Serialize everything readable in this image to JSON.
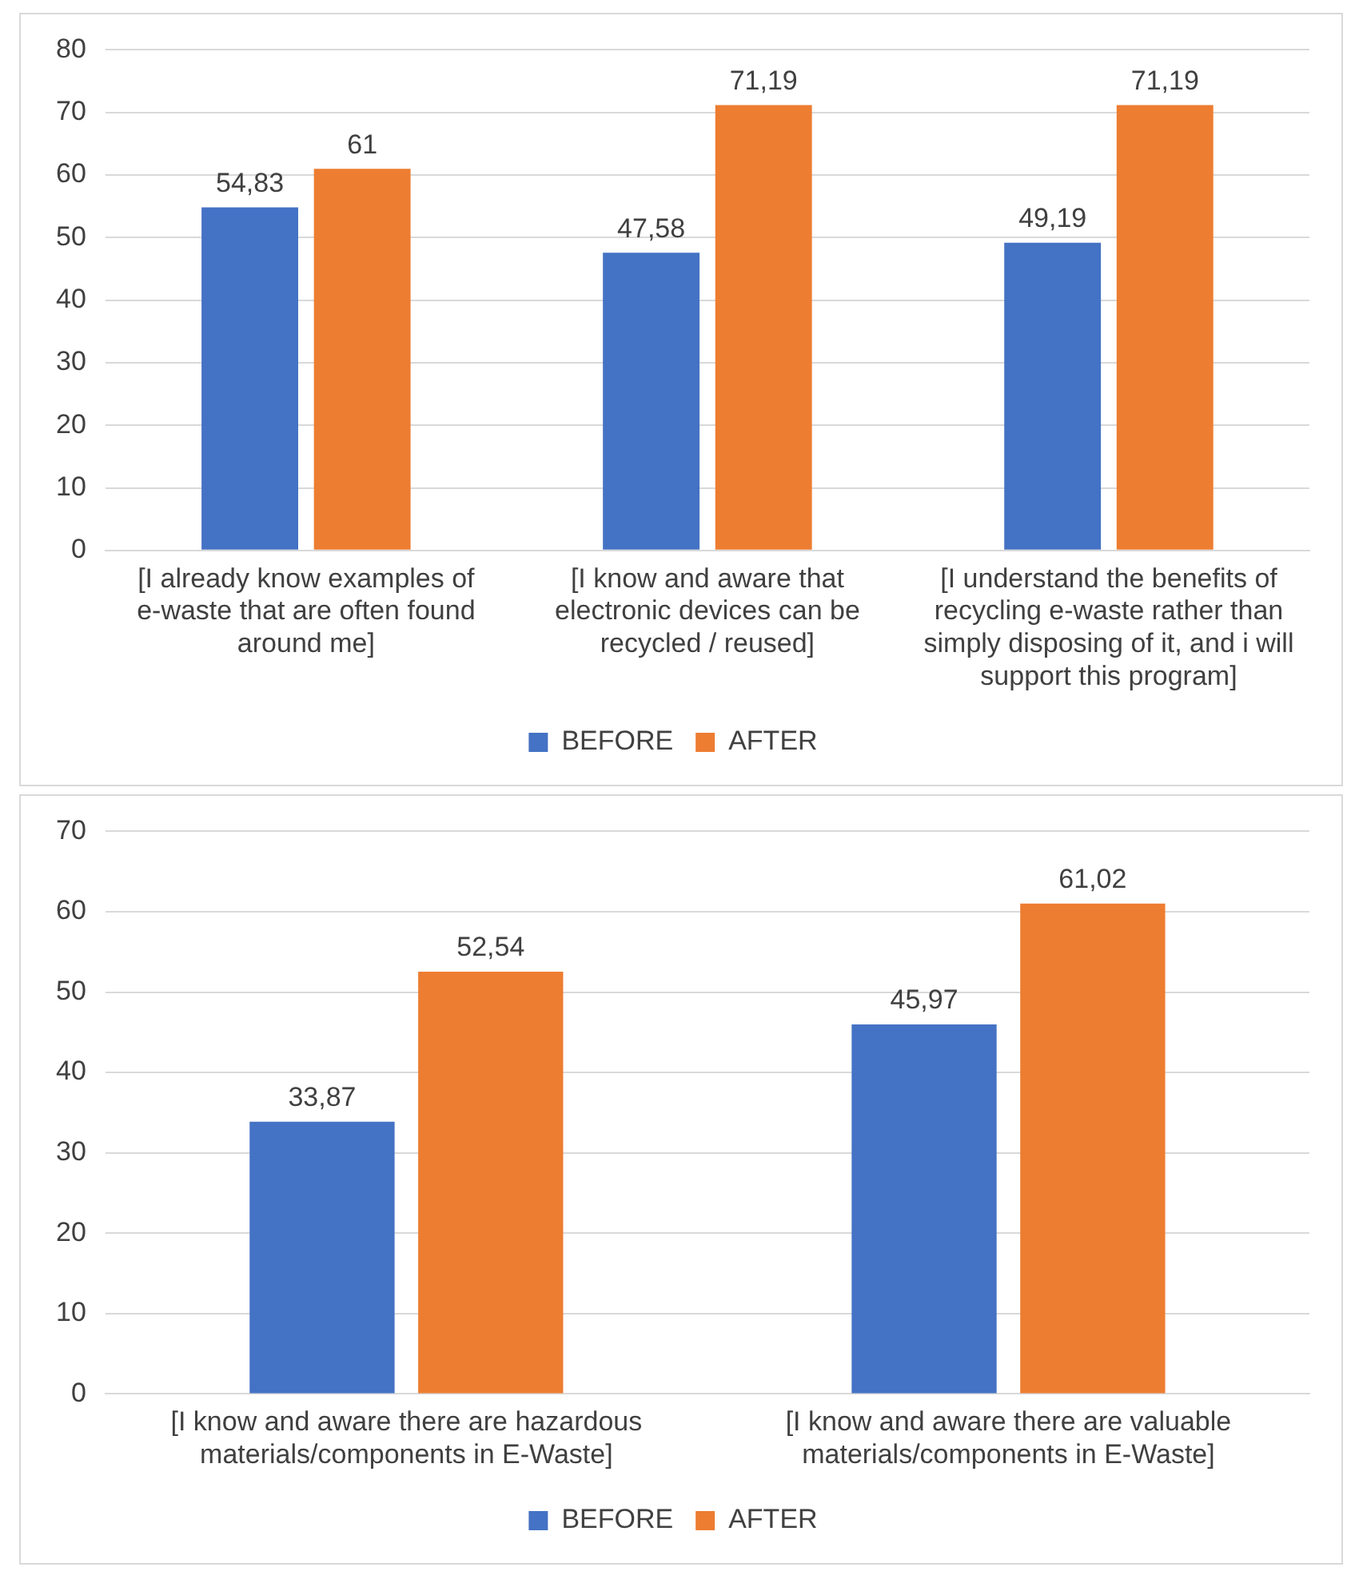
{
  "chart_data": [
    {
      "type": "bar",
      "categories": [
        "[I already know examples of e-waste that are often found around me]",
        "[I know and aware that electronic devices can be recycled / reused]",
        "[I understand the benefits of recycling e-waste rather than simply disposing of it, and i will support this program]"
      ],
      "series": [
        {
          "name": "BEFORE",
          "color": "#4472c4",
          "values": [
            54.83,
            47.58,
            49.19
          ],
          "value_labels": [
            "54,83",
            "47,58",
            "49,19"
          ]
        },
        {
          "name": "AFTER",
          "color": "#ed7d31",
          "values": [
            61,
            71.19,
            71.19
          ],
          "value_labels": [
            "61",
            "71,19",
            "71,19"
          ]
        }
      ],
      "ylim": [
        0,
        80
      ],
      "yticks": [
        0,
        10,
        20,
        30,
        40,
        50,
        60,
        70,
        80
      ],
      "grid": "y",
      "legend": "bottom"
    },
    {
      "type": "bar",
      "categories": [
        "[I know and aware there are hazardous materials/components in E-Waste]",
        "[I know and aware there are valuable materials/components in E-Waste]"
      ],
      "series": [
        {
          "name": "BEFORE",
          "color": "#4472c4",
          "values": [
            33.87,
            45.97
          ],
          "value_labels": [
            "33,87",
            "45,97"
          ]
        },
        {
          "name": "AFTER",
          "color": "#ed7d31",
          "values": [
            52.54,
            61.02
          ],
          "value_labels": [
            "52,54",
            "61,02"
          ]
        }
      ],
      "ylim": [
        0,
        70
      ],
      "yticks": [
        0,
        10,
        20,
        30,
        40,
        50,
        60,
        70
      ],
      "grid": "y",
      "legend": "bottom"
    }
  ]
}
